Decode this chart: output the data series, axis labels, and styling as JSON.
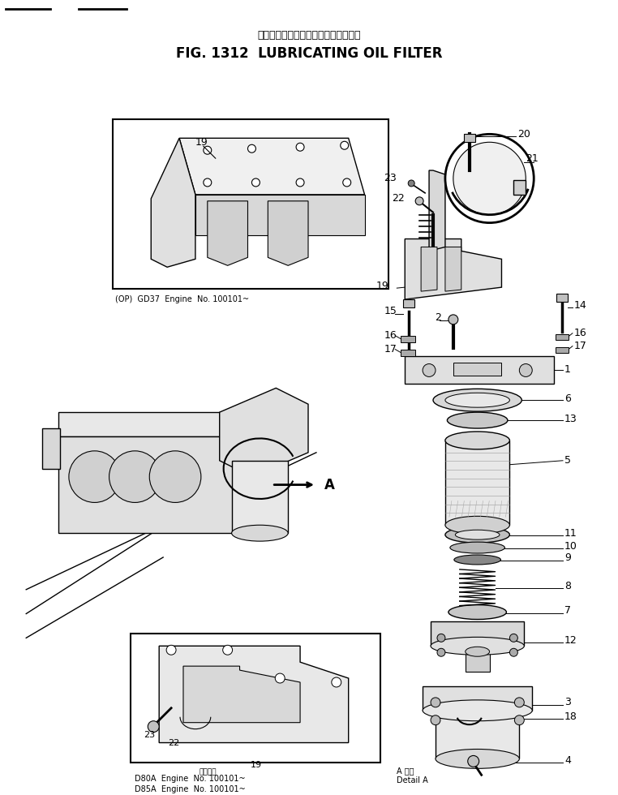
{
  "title_japanese": "ルーブリケーティングオイルフィルタ",
  "title_english": "FIG. 1312  LUBRICATING OIL FILTER",
  "bg_color": "#ffffff",
  "fig_width": 7.62,
  "fig_height": 9.8,
  "dpi": 100,
  "caption_op": "(OP)  GD37  Engine  No. 100101~",
  "caption_d80": "D80A  Engine  No. 100101~",
  "caption_d85": "D85A  Engine  No. 100101~",
  "caption_scale": "スケール",
  "lc": "#000000",
  "tc": "#000000"
}
